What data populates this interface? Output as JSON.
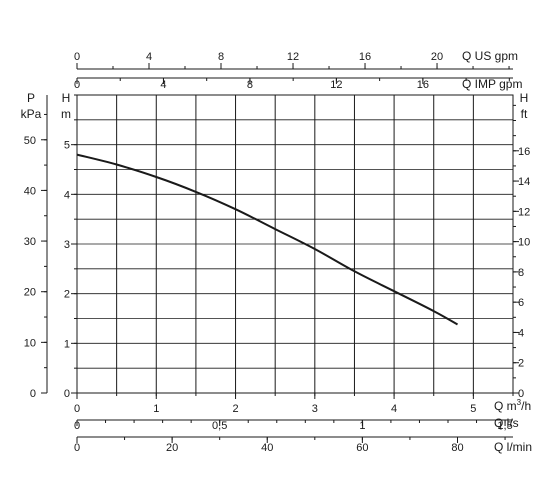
{
  "chart_data": {
    "type": "line",
    "title": "",
    "x": [
      0,
      0.5,
      1,
      1.5,
      2,
      2.5,
      3,
      3.5,
      4,
      4.5,
      4.8
    ],
    "series": [
      {
        "values": [
          4.8,
          4.6,
          4.35,
          4.05,
          3.7,
          3.3,
          2.9,
          2.45,
          2.05,
          1.65,
          1.38
        ]
      }
    ],
    "xlim": [
      0,
      5.5
    ],
    "ylim": [
      0,
      6
    ],
    "grid": true,
    "axes": {
      "bottom": [
        {
          "label": "Q m³/h",
          "label_main": "Q m",
          "label_sup": "3",
          "label_tail": "/h",
          "min": 0,
          "max": 5.5,
          "ticks": [
            0,
            1,
            2,
            3,
            4,
            5
          ],
          "tick_labels": [
            "0",
            "1",
            "2",
            "3",
            "4",
            "5"
          ],
          "minor_step": 0.5
        },
        {
          "label": "Q l/s",
          "min": 0,
          "max": 1.5278,
          "ticks": [
            0,
            0.5,
            1,
            1.5
          ],
          "tick_labels": [
            "0",
            "0,5",
            "1",
            "1,5"
          ],
          "minor_step": 0.1
        },
        {
          "label": "Q l/min",
          "min": 0,
          "max": 91.67,
          "ticks": [
            0,
            20,
            40,
            60,
            80
          ],
          "tick_labels": [
            "0",
            "20",
            "40",
            "60",
            "80"
          ],
          "minor_step": 10
        }
      ],
      "top": [
        {
          "label": "Q US gpm",
          "min": 0,
          "max": 24.22,
          "ticks": [
            0,
            4,
            8,
            12,
            16,
            20
          ],
          "tick_labels": [
            "0",
            "4",
            "8",
            "12",
            "16",
            "20"
          ],
          "minor_step": 2
        },
        {
          "label": "Q IMP gpm",
          "min": 0,
          "max": 20.17,
          "ticks": [
            0,
            4,
            8,
            12,
            16
          ],
          "tick_labels": [
            "0",
            "4",
            "8",
            "12",
            "16"
          ],
          "minor_step": 2
        }
      ],
      "left_outer": {
        "label_top": "P",
        "label_bottom": "kPa",
        "min": 0,
        "max": 58.84,
        "ticks": [
          0,
          10,
          20,
          30,
          40,
          50
        ],
        "tick_labels": [
          "0",
          "10",
          "20",
          "30",
          "40",
          "50"
        ],
        "minor_step": 5
      },
      "left_inner": {
        "label_top": "H",
        "label_bottom": "m",
        "min": 0,
        "max": 6,
        "ticks": [
          0,
          1,
          2,
          3,
          4,
          5
        ],
        "tick_labels": [
          "0",
          "1",
          "2",
          "3",
          "4",
          "5"
        ],
        "minor_step": 0.5
      },
      "right": {
        "label_top": "H",
        "label_bottom": "ft",
        "min": 0,
        "max": 19.685,
        "ticks": [
          0,
          2,
          4,
          6,
          8,
          10,
          12,
          14,
          16
        ],
        "tick_labels": [
          "0",
          "2",
          "4",
          "6",
          "8",
          "10",
          "12",
          "14",
          "16"
        ],
        "minor_step": 1
      }
    }
  }
}
